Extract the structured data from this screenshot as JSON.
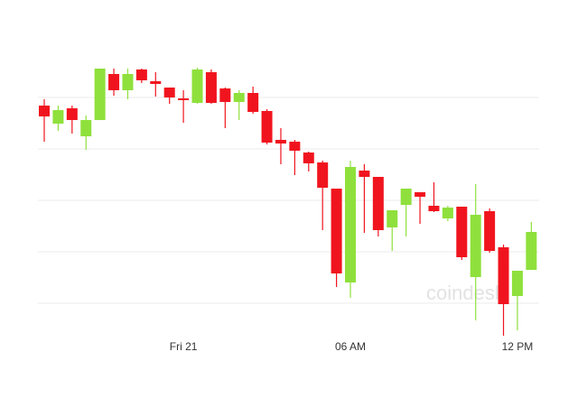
{
  "chart_data": {
    "type": "candlestick",
    "watermark": "coindesk",
    "categories": [
      null,
      null,
      null,
      null,
      null,
      null,
      null,
      null,
      null,
      null,
      "Fri 21",
      null,
      null,
      null,
      null,
      null,
      null,
      null,
      null,
      null,
      null,
      null,
      "06 AM",
      null,
      null,
      null,
      null,
      null,
      null,
      null,
      null,
      null,
      null,
      null,
      "12 PM",
      null
    ],
    "open": [
      263,
      243,
      260,
      229,
      247,
      298,
      280,
      303,
      290,
      283,
      271,
      266,
      300,
      282,
      267,
      277,
      257,
      225,
      223,
      211,
      200,
      171,
      67,
      191,
      184,
      128,
      153,
      167,
      152,
      138,
      151,
      73,
      146,
      106,
      52,
      81
    ],
    "high": [
      270,
      263,
      263,
      252,
      304,
      304,
      304,
      304,
      300,
      283,
      280,
      305,
      303,
      283,
      280,
      284,
      259,
      238,
      225,
      212,
      202,
      171,
      202,
      198,
      184,
      147,
      171,
      167,
      178,
      152,
      151,
      176,
      149,
      109,
      80,
      134
    ],
    "low": [
      223,
      235,
      232,
      214,
      247,
      274,
      270,
      288,
      273,
      265,
      244,
      265,
      265,
      238,
      247,
      254,
      220,
      198,
      186,
      190,
      125,
      62,
      50,
      122,
      118,
      102,
      118,
      132,
      145,
      135,
      92,
      25,
      100,
      8,
      14,
      81
    ],
    "close": [
      251,
      258,
      247,
      247,
      304,
      280,
      298,
      291,
      287,
      272,
      269,
      303,
      266,
      267,
      277,
      256,
      222,
      221,
      213,
      199,
      172,
      77,
      195,
      184,
      125,
      147,
      171,
      162,
      146,
      150,
      95,
      142,
      102,
      43,
      80,
      123
    ],
    "up_color": "#8fe03c",
    "down_color": "#f0141e",
    "ylim": [
      0,
      330
    ],
    "yticks": [
      44,
      101,
      158,
      215,
      272
    ],
    "grid": true
  }
}
